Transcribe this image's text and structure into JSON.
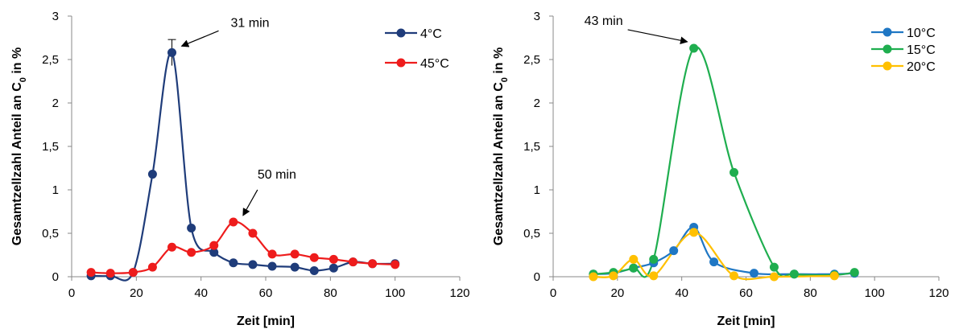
{
  "chart_data": [
    {
      "type": "line",
      "title": "",
      "xlabel": "Zeit [min]",
      "ylabel": "Gesamtzellzahl Anteil an C",
      "ylabel_sub": "0",
      "ylabel_suffix": " in %",
      "xlim": [
        0,
        120
      ],
      "ylim": [
        0,
        3
      ],
      "x_ticks": [
        "0",
        "20",
        "40",
        "60",
        "80",
        "100",
        "120"
      ],
      "y_ticks": [
        "0",
        "0,5",
        "1",
        "1,5",
        "2",
        "2,5",
        "3"
      ],
      "grid": false,
      "legend_position": "top-right",
      "series": [
        {
          "name": "4°C",
          "color": "#1f3c7a",
          "x": [
            6,
            12,
            19,
            25,
            31,
            37,
            44,
            50,
            56,
            62,
            69,
            75,
            81,
            87,
            93,
            100
          ],
          "y": [
            0.01,
            0.01,
            0.05,
            1.18,
            2.58,
            0.56,
            0.28,
            0.16,
            0.14,
            0.12,
            0.11,
            0.07,
            0.1,
            0.17,
            0.15,
            0.15
          ]
        },
        {
          "name": "45°C",
          "color": "#ee1c1c",
          "x": [
            6,
            12,
            19,
            25,
            31,
            37,
            44,
            50,
            56,
            62,
            69,
            75,
            81,
            87,
            93,
            100
          ],
          "y": [
            0.05,
            0.04,
            0.05,
            0.11,
            0.34,
            0.28,
            0.36,
            0.63,
            0.5,
            0.26,
            0.26,
            0.22,
            0.2,
            0.17,
            0.15,
            0.14
          ]
        }
      ],
      "error_bar": {
        "x": 31,
        "y": 2.58,
        "err": 0.15
      },
      "annotations": [
        {
          "text": "31 min",
          "x": 31,
          "y": 2.58
        },
        {
          "text": "50 min",
          "x": 50,
          "y": 0.63
        }
      ]
    },
    {
      "type": "line",
      "title": "",
      "xlabel": "Zeit [min]",
      "ylabel": "Gesamtzellzahl Anteil an C",
      "ylabel_sub": "0",
      "ylabel_suffix": " in %",
      "xlim": [
        0,
        120
      ],
      "ylim": [
        0,
        3
      ],
      "x_ticks": [
        "0",
        "20",
        "40",
        "60",
        "80",
        "100",
        "120"
      ],
      "y_ticks": [
        "0",
        "0,5",
        "1",
        "1,5",
        "2",
        "2,5",
        "3"
      ],
      "grid": false,
      "legend_position": "top-right",
      "series": [
        {
          "name": "10°C",
          "color": "#1f77c4",
          "x": [
            12.5,
            18.75,
            25,
            31.25,
            37.5,
            43.75,
            50,
            62.5,
            75,
            87.5,
            93.75
          ],
          "y": [
            0.03,
            0.04,
            0.1,
            0.16,
            0.3,
            0.57,
            0.17,
            0.04,
            0.03,
            0.03,
            0.04
          ]
        },
        {
          "name": "15°C",
          "color": "#1fae4f",
          "x": [
            12.5,
            18.75,
            25,
            31.25,
            43.75,
            56.25,
            68.75,
            75,
            87.5,
            93.75
          ],
          "y": [
            0.03,
            0.05,
            0.1,
            0.2,
            2.63,
            1.2,
            0.11,
            0.03,
            0.02,
            0.05
          ]
        },
        {
          "name": "20°C",
          "color": "#ffc000",
          "x": [
            12.5,
            18.75,
            25,
            31.25,
            43.75,
            56.25,
            68.75,
            87.5
          ],
          "y": [
            0.0,
            0.01,
            0.2,
            0.01,
            0.51,
            0.01,
            0.0,
            0.01
          ]
        }
      ],
      "annotations": [
        {
          "text": "43 min",
          "x": 43.75,
          "y": 2.63
        }
      ]
    }
  ]
}
